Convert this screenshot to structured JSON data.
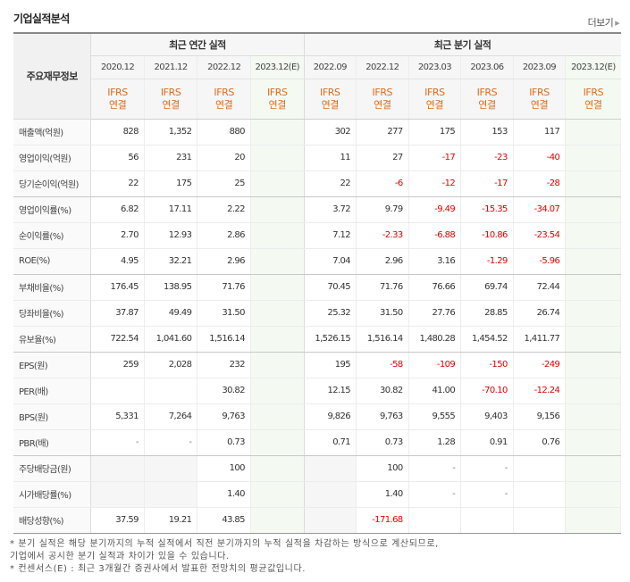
{
  "header": {
    "title": "기업실적분석",
    "more_label": "더보기",
    "more_icon": "triangle-right-icon"
  },
  "table": {
    "label_header": "주요재무정보",
    "annual_group": "최근 연간 실적",
    "quarter_group": "최근 분기 실적",
    "annual_periods": [
      "2020.12",
      "2021.12",
      "2022.12",
      "2023.12(E)"
    ],
    "quarter_periods": [
      "2022.09",
      "2022.12",
      "2023.03",
      "2023.06",
      "2023.09",
      "2023.12(E)"
    ],
    "basis_top": "IFRS",
    "basis_bottom": "연결",
    "rows": [
      {
        "label": "매출액(억원)",
        "values": [
          "828",
          "1,352",
          "880",
          "",
          "302",
          "277",
          "175",
          "153",
          "117",
          ""
        ]
      },
      {
        "label": "영업이익(억원)",
        "values": [
          "56",
          "231",
          "20",
          "",
          "11",
          "27",
          "-17",
          "-23",
          "-40",
          ""
        ]
      },
      {
        "label": "당기순이익(억원)",
        "values": [
          "22",
          "175",
          "25",
          "",
          "22",
          "-6",
          "-12",
          "-17",
          "-28",
          ""
        ]
      },
      {
        "label": "영업이익률(%)",
        "values": [
          "6.82",
          "17.11",
          "2.22",
          "",
          "3.72",
          "9.79",
          "-9.49",
          "-15.35",
          "-34.07",
          ""
        ]
      },
      {
        "label": "순이익률(%)",
        "values": [
          "2.70",
          "12.93",
          "2.86",
          "",
          "7.12",
          "-2.33",
          "-6.88",
          "-10.86",
          "-23.54",
          ""
        ]
      },
      {
        "label": "ROE(%)",
        "values": [
          "4.95",
          "32.21",
          "2.96",
          "",
          "7.04",
          "2.96",
          "3.16",
          "-1.29",
          "-5.96",
          ""
        ]
      },
      {
        "label": "부채비율(%)",
        "values": [
          "176.45",
          "138.95",
          "71.76",
          "",
          "70.45",
          "71.76",
          "76.66",
          "69.74",
          "72.44",
          ""
        ]
      },
      {
        "label": "당좌비율(%)",
        "values": [
          "37.87",
          "49.49",
          "31.50",
          "",
          "25.32",
          "31.50",
          "27.76",
          "28.85",
          "26.74",
          ""
        ]
      },
      {
        "label": "유보율(%)",
        "values": [
          "722.54",
          "1,041.60",
          "1,516.14",
          "",
          "1,526.15",
          "1,516.14",
          "1,480.28",
          "1,454.52",
          "1,411.77",
          ""
        ]
      },
      {
        "label": "EPS(원)",
        "values": [
          "259",
          "2,028",
          "232",
          "",
          "195",
          "-58",
          "-109",
          "-150",
          "-249",
          ""
        ]
      },
      {
        "label": "PER(배)",
        "values": [
          "",
          "",
          "30.82",
          "",
          "12.15",
          "30.82",
          "41.00",
          "-70.10",
          "-12.24",
          ""
        ]
      },
      {
        "label": "BPS(원)",
        "values": [
          "5,331",
          "7,264",
          "9,763",
          "",
          "9,826",
          "9,763",
          "9,555",
          "9,403",
          "9,156",
          ""
        ]
      },
      {
        "label": "PBR(배)",
        "values": [
          "-",
          "-",
          "0.73",
          "",
          "0.71",
          "0.73",
          "1.28",
          "0.91",
          "0.76",
          ""
        ]
      },
      {
        "label": "주당배당금(원)",
        "values": [
          "",
          "",
          "100",
          "",
          "",
          "100",
          "-",
          "-",
          "",
          ""
        ]
      },
      {
        "label": "시가배당률(%)",
        "values": [
          "",
          "",
          "1.40",
          "",
          "",
          "1.40",
          "-",
          "-",
          "",
          ""
        ]
      },
      {
        "label": "배당성향(%)",
        "values": [
          "37.59",
          "19.21",
          "43.85",
          "",
          "",
          "-171.68",
          "",
          "",
          "",
          ""
        ]
      }
    ]
  },
  "notes": [
    "* 분기 실적은 해당 분기까지의 누적 실적에서 직전 분기까지의 누적 실적을 차감하는 방식으로 계산되므로,",
    "  기업에서 공시한 분기 실적과 차이가 있을 수 있습니다.",
    "* 컨센서스(E) : 최근 3개월간 증권사에서 발표한 전망치의 평균값입니다."
  ],
  "colors": {
    "negative": "#e00000",
    "ifrs": "#e06b1b",
    "estimate_bg": "#f4faf2"
  }
}
